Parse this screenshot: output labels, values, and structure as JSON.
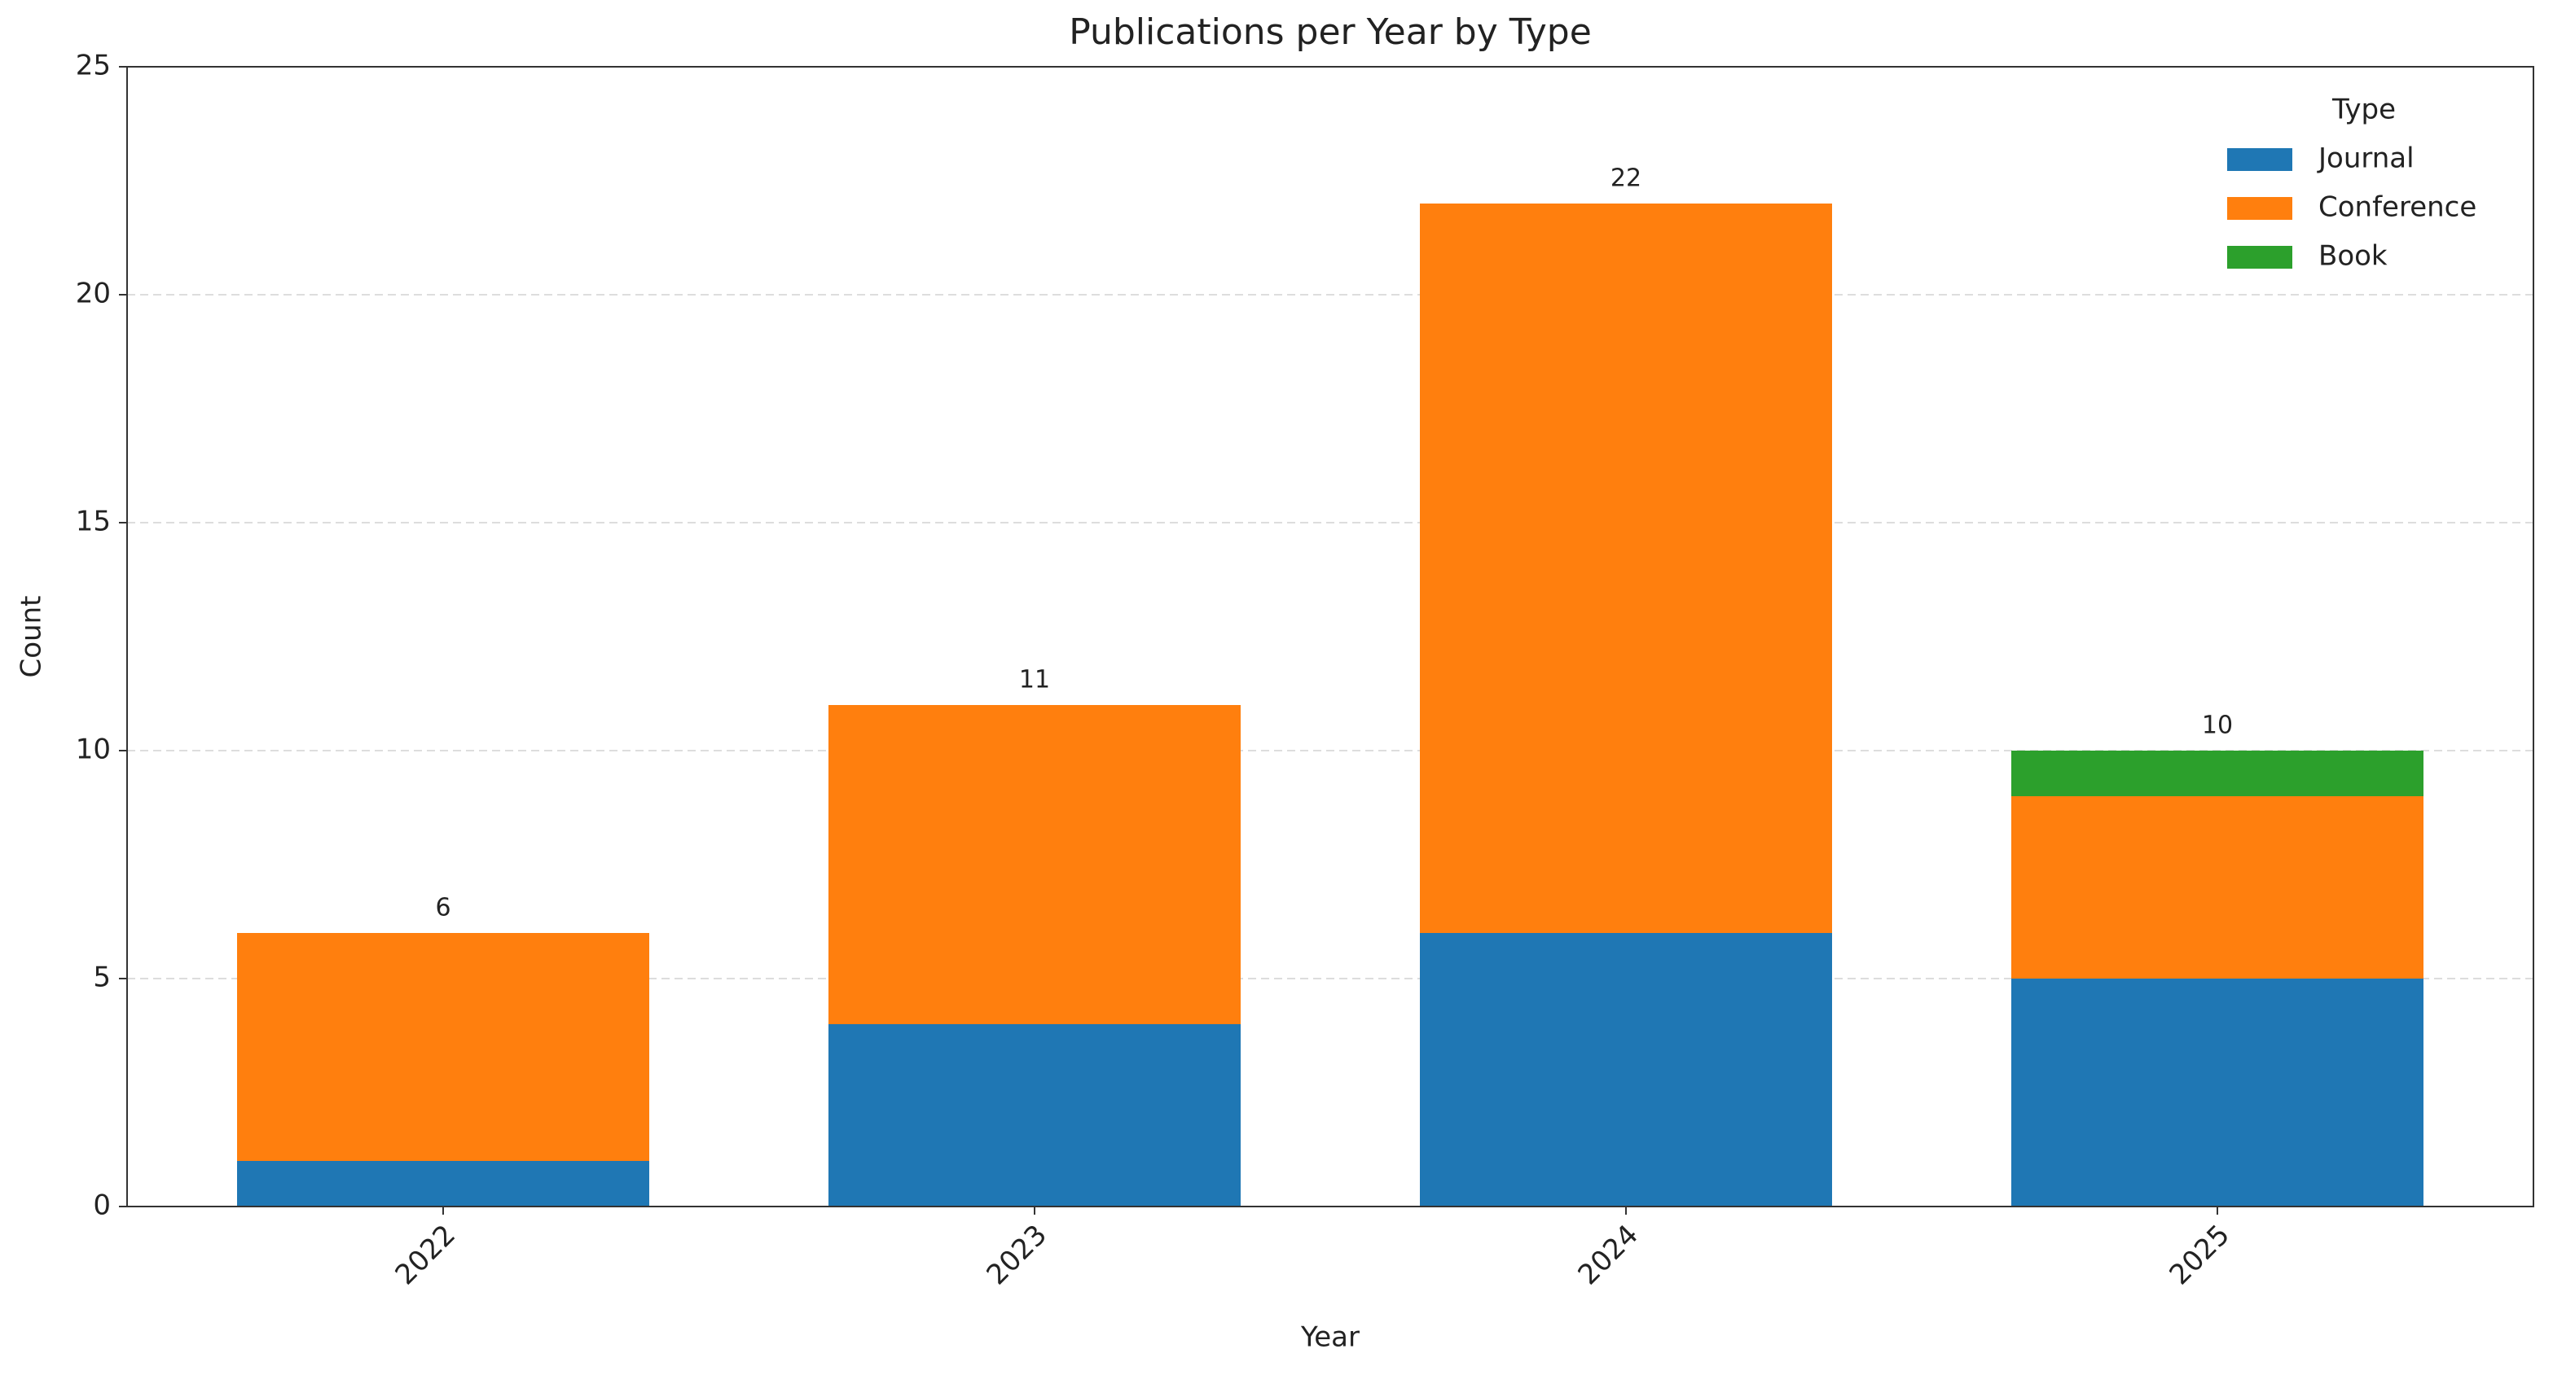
{
  "chart_data": {
    "type": "stacked_bar",
    "title": "Publications per Year by Type",
    "x_label": "Year",
    "y_label": "Count",
    "categories": [
      "2022",
      "2023",
      "2024",
      "2025"
    ],
    "series": [
      {
        "name": "Journal",
        "color": "#1f77b4",
        "values": [
          1,
          4,
          6,
          5
        ]
      },
      {
        "name": "Conference",
        "color": "#ff7f0e",
        "values": [
          5,
          7,
          16,
          4
        ]
      },
      {
        "name": "Book",
        "color": "#2ca02c",
        "values": [
          0,
          0,
          0,
          1
        ]
      }
    ],
    "totals": [
      6,
      11,
      22,
      10
    ],
    "legend_title": "Type",
    "legend_position": "upper right",
    "ylim": [
      0,
      25
    ],
    "yticks": [
      0,
      5,
      10,
      15,
      20,
      25
    ],
    "grid": true
  }
}
